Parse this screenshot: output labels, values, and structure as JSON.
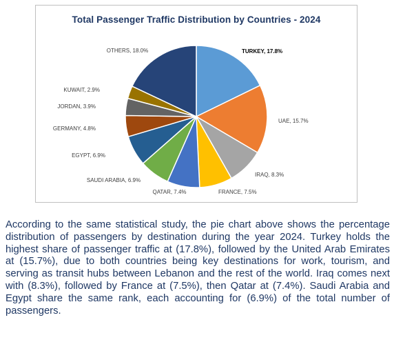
{
  "chart_data": {
    "type": "pie",
    "title": "Total Passenger Traffic Distribution by Countries - 2024",
    "slices": [
      {
        "label": "TURKEY",
        "value": 17.8,
        "text": "TURKEY, 17.8%",
        "color": "#5b9bd5",
        "bold": true
      },
      {
        "label": "UAE",
        "value": 15.7,
        "text": "UAE, 15.7%",
        "color": "#ed7d31"
      },
      {
        "label": "IRAQ",
        "value": 8.3,
        "text": "IRAQ, 8.3%",
        "color": "#a5a5a5"
      },
      {
        "label": "FRANCE",
        "value": 7.5,
        "text": "FRANCE, 7.5%",
        "color": "#ffc000"
      },
      {
        "label": "QATAR",
        "value": 7.4,
        "text": "QATAR, 7.4%",
        "color": "#4472c4"
      },
      {
        "label": "SAUDI ARABIA",
        "value": 6.9,
        "text": "SAUDI ARABIA, 6.9%",
        "color": "#70ad47"
      },
      {
        "label": "EGYPT",
        "value": 6.9,
        "text": "EGYPT, 6.9%",
        "color": "#255e91"
      },
      {
        "label": "GERMANY",
        "value": 4.8,
        "text": "GERMANY, 4.8%",
        "color": "#9e480e"
      },
      {
        "label": "JORDAN",
        "value": 3.9,
        "text": "JORDAN, 3.9%",
        "color": "#636363"
      },
      {
        "label": "KUWAIT",
        "value": 2.9,
        "text": "KUWAIT, 2.9%",
        "color": "#997300"
      },
      {
        "label": "OTHERS",
        "value": 18.0,
        "text": "OTHERS, 18.0%",
        "color": "#264478"
      }
    ]
  },
  "caption": "According to the same statistical study, the pie chart above shows the percentage distribution of passengers by destination during the year 2024. Turkey holds the highest share of passenger traffic at (17.8%), followed by the United Arab Emirates at (15.7%), due to both countries being key destinations for work, tourism, and serving as transit hubs between Lebanon and the rest of the world. Iraq comes next with (8.3%), followed by France at (7.5%), then Qatar at (7.4%). Saudi Arabia and Egypt share the same rank, each accounting for (6.9%) of the total number of passengers."
}
